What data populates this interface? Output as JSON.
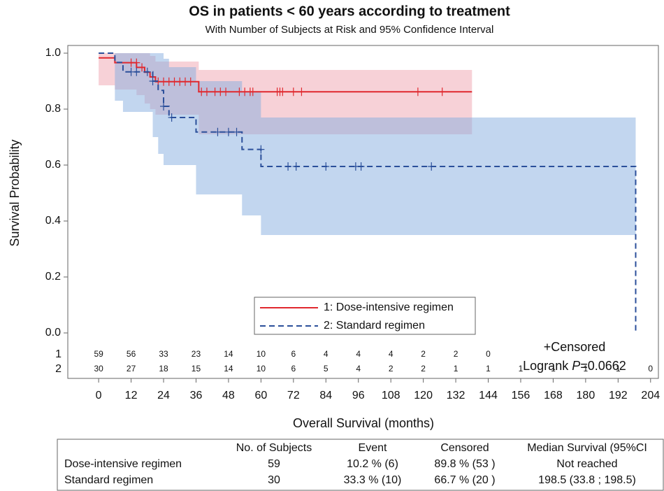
{
  "chart_data": {
    "type": "km",
    "title": "OS in patients < 60 years according to treatment",
    "subtitle": "With Number of Subjects at Risk and 95% Confidence Interval",
    "xlabel": "Overall Survival (months)",
    "ylabel": "Survival Probability",
    "xlim": [
      -11.4,
      206.9
    ],
    "ylim": [
      -0.04,
      1.0275
    ],
    "xticks": [
      0,
      12,
      24,
      36,
      48,
      60,
      72,
      84,
      96,
      108,
      120,
      132,
      144,
      156,
      168,
      180,
      192,
      204
    ],
    "yticks": [
      {
        "value": 0,
        "label": "0.0"
      },
      {
        "value": 0.2,
        "label": "0.2"
      },
      {
        "value": 0.4,
        "label": "0.4"
      },
      {
        "value": 0.6,
        "label": "0.6"
      },
      {
        "value": 0.8,
        "label": "0.8"
      },
      {
        "value": 1,
        "label": "1.0"
      }
    ],
    "series": [
      {
        "name": "1: Dose-intensive regimen",
        "color": "#e0282e",
        "band_color": "#f0a3b0",
        "dash": false,
        "x": [
          0,
          6,
          14,
          17,
          19,
          21,
          37,
          138
        ],
        "values": [
          0.983,
          0.966,
          0.949,
          0.932,
          0.915,
          0.898,
          0.862,
          0.862
        ],
        "lower": [
          0.885,
          0.87,
          0.85,
          0.82,
          0.8,
          0.78,
          0.71,
          null
        ],
        "upper": [
          1,
          1,
          1,
          1,
          0.99,
          0.97,
          0.94,
          null
        ],
        "censored_x": [
          12,
          14,
          16,
          22,
          24,
          26,
          28,
          30,
          32,
          34,
          38,
          40,
          43,
          45,
          47,
          52,
          54,
          56,
          57,
          66,
          67,
          68,
          72,
          75,
          118,
          127
        ],
        "censored_y": [
          0.966,
          0.966,
          0.949,
          0.898,
          0.898,
          0.898,
          0.898,
          0.898,
          0.898,
          0.898,
          0.862,
          0.862,
          0.862,
          0.862,
          0.862,
          0.862,
          0.862,
          0.862,
          0.862,
          0.862,
          0.862,
          0.862,
          0.862,
          0.862,
          0.862,
          0.862
        ]
      },
      {
        "name": "2: Standard regimen",
        "color": "#2b4f9a",
        "band_color": "#86aee0",
        "dash": true,
        "x": [
          0,
          6,
          9,
          20,
          22,
          24,
          26,
          36,
          53,
          60,
          198.5
        ],
        "values": [
          1,
          0.967,
          0.933,
          0.9,
          0.867,
          0.81,
          0.77,
          0.718,
          0.656,
          0.595,
          0
        ],
        "lower": [
          1,
          0.83,
          0.79,
          0.7,
          0.64,
          0.6,
          0.6,
          0.495,
          0.42,
          0.35,
          null
        ],
        "upper": [
          1,
          1,
          1,
          1,
          1,
          0.98,
          0.95,
          0.9,
          0.86,
          0.77,
          null
        ],
        "censored_x": [
          12,
          14,
          18,
          20,
          24,
          27,
          44,
          48,
          51,
          60,
          70,
          73,
          84,
          95,
          97,
          123
        ],
        "censored_y": [
          0.933,
          0.933,
          0.933,
          0.9,
          0.81,
          0.77,
          0.718,
          0.718,
          0.718,
          0.656,
          0.595,
          0.595,
          0.595,
          0.595,
          0.595,
          0.595
        ]
      }
    ],
    "risk_table": [
      {
        "label": "1",
        "values": [
          59,
          56,
          33,
          23,
          14,
          10,
          6,
          4,
          4,
          4,
          2,
          2,
          0
        ]
      },
      {
        "label": "2",
        "values": [
          30,
          27,
          18,
          15,
          14,
          10,
          6,
          5,
          4,
          2,
          2,
          1,
          1,
          1,
          1,
          1,
          1,
          0
        ]
      }
    ],
    "censored_label": "+Censored",
    "logrank_label": "Logrank",
    "p_symbol": "P",
    "p_value": "=0.0662",
    "summary": {
      "header": [
        "No. of Subjects",
        "Event",
        "Censored",
        "Median Survival (95%CI"
      ],
      "rows": [
        [
          "Dose-intensive regimen",
          "59",
          "10.2 % (6)",
          "89.8 % (53 )",
          "Not reached"
        ],
        [
          "Standard regimen",
          "30",
          "33.3 % (10)",
          "66.7 % (20 )",
          "198.5 (33.8 ; 198.5)"
        ]
      ]
    }
  }
}
